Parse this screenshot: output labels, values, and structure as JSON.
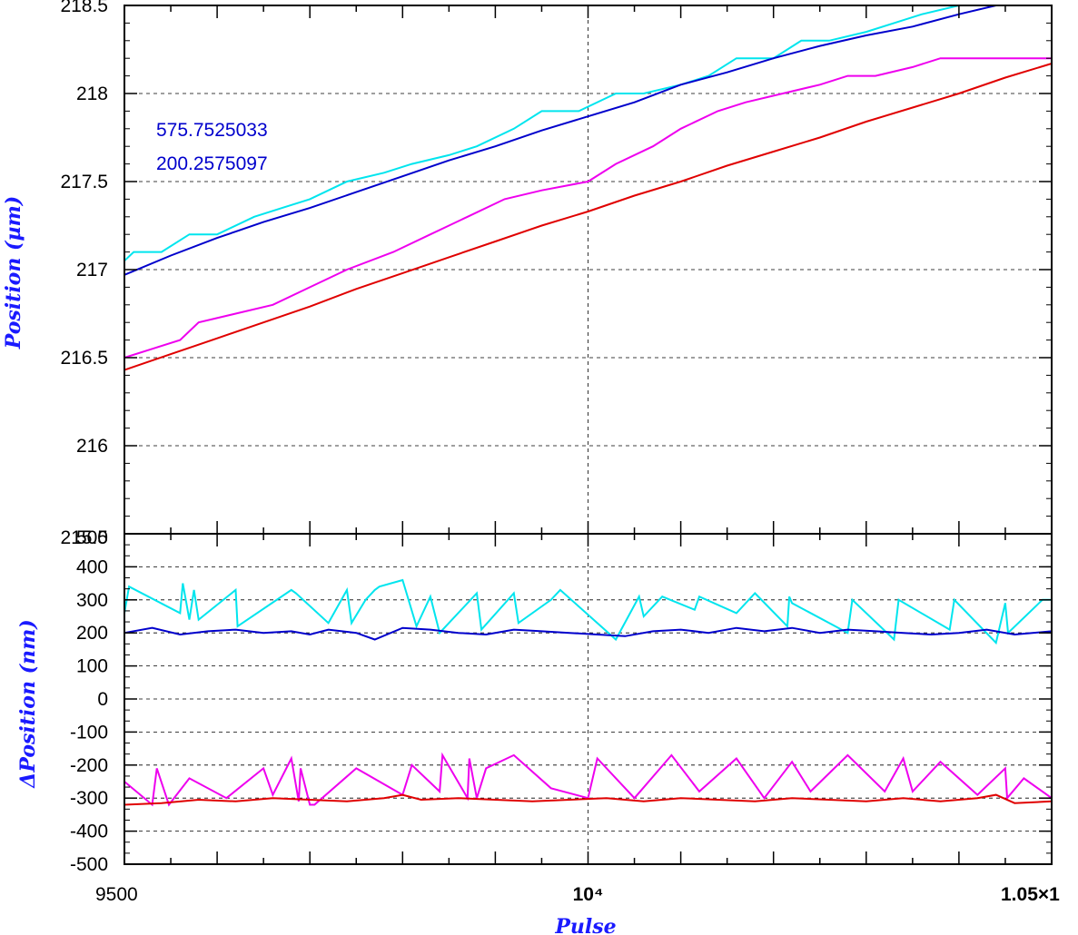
{
  "chart_data": [
    {
      "type": "line",
      "ylabel": "Position (µm)",
      "xlim": [
        9500,
        10500
      ],
      "ylim": [
        215.5,
        218.5
      ],
      "yticks": [
        "216",
        "216.5",
        "217",
        "217.5",
        "218",
        "218.5"
      ],
      "ybottom_label": "215.5",
      "grid": true,
      "annotations": [
        "575.7525033",
        "200.2575097"
      ],
      "colors": {
        "cyan": "#00e5ee",
        "blue": "#0000cc",
        "magenta": "#ee00ee",
        "red": "#e00000"
      },
      "series": [
        {
          "color": "cyan",
          "x": [
            9500,
            9510,
            9540,
            9570,
            9600,
            9640,
            9670,
            9700,
            9740,
            9780,
            9810,
            9850,
            9880,
            9920,
            9950,
            9990,
            10030,
            10060,
            10100,
            10130,
            10160,
            10200,
            10230,
            10260,
            10300,
            10330,
            10360,
            10400,
            10440
          ],
          "y": [
            217.05,
            217.1,
            217.1,
            217.2,
            217.2,
            217.3,
            217.35,
            217.4,
            217.5,
            217.55,
            217.6,
            217.65,
            217.7,
            217.8,
            217.9,
            217.9,
            218.0,
            218.0,
            218.05,
            218.1,
            218.2,
            218.2,
            218.3,
            218.3,
            218.35,
            218.4,
            218.45,
            218.5,
            218.5
          ]
        },
        {
          "color": "blue",
          "x": [
            9500,
            9550,
            9600,
            9650,
            9700,
            9750,
            9800,
            9850,
            9900,
            9950,
            10000,
            10050,
            10100,
            10150,
            10200,
            10250,
            10300,
            10350,
            10400,
            10440
          ],
          "y": [
            216.97,
            217.08,
            217.18,
            217.27,
            217.35,
            217.44,
            217.53,
            217.62,
            217.7,
            217.79,
            217.87,
            217.95,
            218.05,
            218.12,
            218.2,
            218.27,
            218.33,
            218.38,
            218.45,
            218.5
          ]
        },
        {
          "color": "magenta",
          "x": [
            9500,
            9530,
            9560,
            9580,
            9620,
            9660,
            9700,
            9740,
            9790,
            9830,
            9870,
            9910,
            9950,
            10000,
            10030,
            10070,
            10100,
            10140,
            10170,
            10210,
            10250,
            10280,
            10310,
            10350,
            10380,
            10410,
            10450,
            10480,
            10500
          ],
          "y": [
            216.5,
            216.55,
            216.6,
            216.7,
            216.75,
            216.8,
            216.9,
            217.0,
            217.1,
            217.2,
            217.3,
            217.4,
            217.45,
            217.5,
            217.6,
            217.7,
            217.8,
            217.9,
            217.95,
            218.0,
            218.05,
            218.1,
            218.1,
            218.15,
            218.2,
            218.2,
            218.2,
            218.2,
            218.2
          ]
        },
        {
          "color": "red",
          "x": [
            9500,
            9550,
            9600,
            9650,
            9700,
            9750,
            9800,
            9850,
            9900,
            9950,
            10000,
            10050,
            10100,
            10150,
            10200,
            10250,
            10300,
            10350,
            10400,
            10450,
            10500
          ],
          "y": [
            216.43,
            216.52,
            216.61,
            216.7,
            216.79,
            216.89,
            216.98,
            217.07,
            217.16,
            217.25,
            217.33,
            217.42,
            217.5,
            217.59,
            217.67,
            217.75,
            217.84,
            217.92,
            218.0,
            218.09,
            218.17
          ]
        }
      ]
    },
    {
      "type": "line",
      "xlabel": "Pulse",
      "ylabel": "ΔPosition (nm)",
      "xlim": [
        9500,
        10500
      ],
      "ylim": [
        -500,
        500
      ],
      "yticks": [
        "-500",
        "-400",
        "-300",
        "-200",
        "-100",
        "0",
        "100",
        "200",
        "300",
        "400"
      ],
      "ytop_label": "500",
      "xticks": [
        {
          "value": 9500,
          "label": "9500"
        },
        {
          "value": 10000,
          "label": "10⁴"
        },
        {
          "value": 10500,
          "label": "1.05×1"
        }
      ],
      "grid": true,
      "series": [
        {
          "color": "cyan",
          "x": [
            9500,
            9505,
            9560,
            9563,
            9570,
            9575,
            9580,
            9620,
            9622,
            9680,
            9685,
            9720,
            9740,
            9745,
            9760,
            9770,
            9775,
            9800,
            9815,
            9830,
            9840,
            9880,
            9885,
            9920,
            9925,
            9960,
            9970,
            10030,
            10055,
            10060,
            10080,
            10115,
            10120,
            10160,
            10180,
            10215,
            10217,
            10220,
            10280,
            10285,
            10330,
            10335,
            10390,
            10395,
            10440,
            10450,
            10453,
            10490,
            10500
          ],
          "y": [
            260,
            340,
            260,
            350,
            240,
            330,
            240,
            330,
            220,
            330,
            320,
            230,
            330,
            230,
            300,
            330,
            340,
            360,
            220,
            310,
            200,
            320,
            210,
            320,
            230,
            300,
            330,
            180,
            310,
            250,
            310,
            270,
            310,
            260,
            320,
            220,
            310,
            290,
            200,
            300,
            180,
            300,
            210,
            300,
            170,
            290,
            200,
            300,
            300
          ]
        },
        {
          "color": "blue",
          "x": [
            9500,
            9530,
            9560,
            9590,
            9620,
            9650,
            9680,
            9700,
            9720,
            9750,
            9770,
            9800,
            9830,
            9860,
            9890,
            9920,
            9950,
            9980,
            10010,
            10040,
            10070,
            10100,
            10130,
            10160,
            10190,
            10220,
            10250,
            10280,
            10310,
            10340,
            10370,
            10400,
            10430,
            10460,
            10500
          ],
          "y": [
            200,
            215,
            195,
            205,
            210,
            200,
            205,
            195,
            210,
            200,
            180,
            215,
            210,
            200,
            195,
            210,
            205,
            200,
            195,
            190,
            205,
            210,
            200,
            215,
            205,
            215,
            200,
            210,
            205,
            200,
            195,
            200,
            210,
            195,
            205
          ]
        },
        {
          "color": "magenta",
          "x": [
            9500,
            9530,
            9535,
            9548,
            9570,
            9610,
            9650,
            9660,
            9680,
            9688,
            9690,
            9700,
            9705,
            9750,
            9800,
            9810,
            9840,
            9843,
            9870,
            9872,
            9880,
            9890,
            9920,
            9960,
            10000,
            10010,
            10050,
            10090,
            10120,
            10160,
            10190,
            10220,
            10240,
            10280,
            10320,
            10340,
            10350,
            10380,
            10420,
            10450,
            10452,
            10470,
            10500
          ],
          "y": [
            -250,
            -320,
            -210,
            -320,
            -240,
            -300,
            -210,
            -290,
            -180,
            -310,
            -210,
            -320,
            -320,
            -210,
            -290,
            -200,
            -280,
            -170,
            -300,
            -180,
            -300,
            -210,
            -170,
            -270,
            -300,
            -180,
            -300,
            -170,
            -280,
            -180,
            -300,
            -190,
            -280,
            -170,
            -280,
            -180,
            -280,
            -190,
            -290,
            -210,
            -300,
            -240,
            -300
          ]
        },
        {
          "color": "red",
          "x": [
            9500,
            9540,
            9580,
            9620,
            9660,
            9700,
            9740,
            9780,
            9800,
            9820,
            9860,
            9900,
            9940,
            9980,
            10020,
            10060,
            10100,
            10140,
            10180,
            10220,
            10260,
            10300,
            10340,
            10380,
            10420,
            10440,
            10460,
            10500
          ],
          "y": [
            -320,
            -315,
            -305,
            -310,
            -300,
            -305,
            -310,
            -300,
            -290,
            -305,
            -300,
            -305,
            -310,
            -305,
            -300,
            -310,
            -300,
            -305,
            -310,
            -300,
            -305,
            -310,
            -300,
            -310,
            -300,
            -290,
            -315,
            -310
          ]
        }
      ]
    }
  ]
}
